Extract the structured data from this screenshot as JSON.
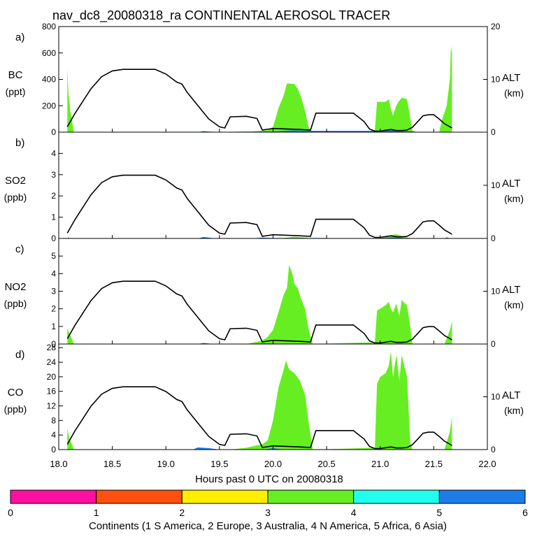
{
  "title": "nav_dc8_20080318_ra CONTINENTAL AEROSOL TRACER",
  "xlabel": "Hours past 0 UTC on 20080318",
  "x_ticks": [
    "18.0",
    "18.5",
    "19.0",
    "19.5",
    "20.0",
    "20.5",
    "21.0",
    "21.5",
    "22.0"
  ],
  "colorbar": {
    "label": "Continents (1 S America, 2 Europe, 3 Australia, 4 N America, 5 Africa, 6 Asia)",
    "ticks": [
      "0",
      "1",
      "2",
      "3",
      "4",
      "5",
      "6"
    ],
    "colors": [
      "#ff10a0",
      "#ff5010",
      "#ffee00",
      "#66ee22",
      "#22ffee",
      "#1e7ce8"
    ]
  },
  "colors": {
    "green": "#66ee22",
    "blue": "#1e7ce8"
  },
  "chart_data": [
    {
      "type": "area",
      "panel": "a)",
      "ylabel": "BC",
      "unit": "(ppt)",
      "ylim": [
        0,
        800
      ],
      "yticks": [
        "0",
        "200",
        "400",
        "600",
        "800"
      ],
      "right_axis": {
        "label": "ALT",
        "unit": "(km)",
        "ylim": [
          0,
          20
        ],
        "ticks": [
          "0",
          "10",
          "20"
        ]
      },
      "series_green": [
        [
          18.08,
          480
        ],
        [
          18.09,
          300
        ],
        [
          18.11,
          150
        ],
        [
          18.13,
          60
        ],
        [
          18.14,
          0
        ],
        [
          19.3,
          0
        ],
        [
          19.8,
          5
        ],
        [
          19.95,
          15
        ],
        [
          20.0,
          40
        ],
        [
          20.05,
          180
        ],
        [
          20.1,
          280
        ],
        [
          20.13,
          370
        ],
        [
          20.2,
          365
        ],
        [
          20.23,
          330
        ],
        [
          20.26,
          270
        ],
        [
          20.3,
          160
        ],
        [
          20.33,
          40
        ],
        [
          20.37,
          0
        ],
        [
          20.8,
          0
        ],
        [
          20.95,
          15
        ],
        [
          20.97,
          230
        ],
        [
          21.05,
          230
        ],
        [
          21.08,
          250
        ],
        [
          21.1,
          175
        ],
        [
          21.12,
          125
        ],
        [
          21.15,
          200
        ],
        [
          21.17,
          230
        ],
        [
          21.2,
          260
        ],
        [
          21.25,
          250
        ],
        [
          21.3,
          15
        ],
        [
          21.33,
          0
        ],
        [
          21.55,
          0
        ],
        [
          21.58,
          100
        ],
        [
          21.6,
          150
        ],
        [
          21.62,
          200
        ],
        [
          21.65,
          400
        ],
        [
          21.66,
          650
        ],
        [
          21.67,
          600
        ]
      ],
      "series_blue": [
        [
          19.3,
          0
        ],
        [
          19.35,
          8
        ],
        [
          19.4,
          5
        ],
        [
          19.5,
          0
        ],
        [
          19.7,
          3
        ],
        [
          20.0,
          5
        ],
        [
          20.1,
          10
        ],
        [
          20.2,
          15
        ],
        [
          20.35,
          10
        ],
        [
          21.0,
          10
        ],
        [
          21.05,
          20
        ],
        [
          21.1,
          15
        ],
        [
          21.2,
          10
        ],
        [
          21.4,
          0
        ]
      ],
      "altitude": [
        [
          18.08,
          1
        ],
        [
          18.15,
          3.5
        ],
        [
          18.3,
          8.2
        ],
        [
          18.4,
          10.5
        ],
        [
          18.5,
          11.6
        ],
        [
          18.6,
          11.9
        ],
        [
          18.9,
          11.9
        ],
        [
          19.0,
          11
        ],
        [
          19.1,
          9.5
        ],
        [
          19.15,
          9.1
        ],
        [
          19.2,
          7.5
        ],
        [
          19.3,
          5
        ],
        [
          19.4,
          2.5
        ],
        [
          19.5,
          1
        ],
        [
          19.55,
          0.8
        ],
        [
          19.6,
          2.9
        ],
        [
          19.75,
          3
        ],
        [
          19.85,
          2.6
        ],
        [
          19.9,
          0.4
        ],
        [
          20.0,
          0.7
        ],
        [
          20.25,
          0.5
        ],
        [
          20.35,
          0.4
        ],
        [
          20.4,
          3.6
        ],
        [
          20.75,
          3.6
        ],
        [
          20.85,
          2
        ],
        [
          20.9,
          0.6
        ],
        [
          20.95,
          0.2
        ],
        [
          21.0,
          0.2
        ],
        [
          21.1,
          0.5
        ],
        [
          21.15,
          0.3
        ],
        [
          21.2,
          0.3
        ],
        [
          21.25,
          0.4
        ],
        [
          21.3,
          0.9
        ],
        [
          21.35,
          2
        ],
        [
          21.4,
          3.1
        ],
        [
          21.45,
          3.3
        ],
        [
          21.5,
          3.3
        ],
        [
          21.55,
          2.5
        ],
        [
          21.6,
          1.6
        ],
        [
          21.67,
          0.8
        ]
      ]
    },
    {
      "type": "area",
      "panel": "b)",
      "ylabel": "SO2",
      "unit": "(ppb)",
      "ylim": [
        0,
        5
      ],
      "yticks": [
        "0",
        "1",
        "2",
        "3",
        "4"
      ],
      "right_axis": {
        "label": "ALT",
        "unit": "(km)",
        "ylim": [
          0,
          20
        ],
        "ticks": [
          "0",
          "10"
        ]
      },
      "series_green": [
        [
          20.05,
          0
        ],
        [
          20.15,
          0.05
        ],
        [
          20.2,
          0.08
        ],
        [
          20.3,
          0.04
        ],
        [
          20.35,
          0
        ],
        [
          21.0,
          0
        ],
        [
          21.05,
          0.1
        ],
        [
          21.15,
          0.2
        ],
        [
          21.25,
          0.05
        ],
        [
          21.3,
          0
        ]
      ],
      "series_blue": [
        [
          18.08,
          0
        ],
        [
          18.09,
          0.06
        ],
        [
          18.1,
          0
        ],
        [
          19.3,
          0
        ],
        [
          19.35,
          0.07
        ],
        [
          19.4,
          0.04
        ],
        [
          19.45,
          0
        ],
        [
          19.8,
          0
        ],
        [
          19.9,
          0.04
        ],
        [
          20.0,
          0.02
        ],
        [
          20.5,
          0.02
        ],
        [
          20.6,
          0
        ],
        [
          21.0,
          0
        ],
        [
          21.1,
          0.05
        ],
        [
          21.2,
          0.03
        ],
        [
          21.25,
          0
        ],
        [
          21.6,
          0
        ],
        [
          21.62,
          0.05
        ],
        [
          21.65,
          0
        ]
      ],
      "altitude": [
        [
          18.08,
          1
        ],
        [
          18.15,
          3.5
        ],
        [
          18.3,
          8.2
        ],
        [
          18.4,
          10.5
        ],
        [
          18.5,
          11.6
        ],
        [
          18.6,
          11.9
        ],
        [
          18.9,
          11.9
        ],
        [
          19.0,
          11
        ],
        [
          19.1,
          9.5
        ],
        [
          19.15,
          9.1
        ],
        [
          19.2,
          7.5
        ],
        [
          19.3,
          5
        ],
        [
          19.4,
          2.5
        ],
        [
          19.5,
          1
        ],
        [
          19.55,
          0.8
        ],
        [
          19.6,
          2.9
        ],
        [
          19.75,
          3
        ],
        [
          19.85,
          2.6
        ],
        [
          19.9,
          0.4
        ],
        [
          20.0,
          0.7
        ],
        [
          20.25,
          0.5
        ],
        [
          20.35,
          0.4
        ],
        [
          20.4,
          3.6
        ],
        [
          20.75,
          3.6
        ],
        [
          20.85,
          2
        ],
        [
          20.9,
          0.6
        ],
        [
          20.95,
          0.2
        ],
        [
          21.0,
          0.2
        ],
        [
          21.1,
          0.5
        ],
        [
          21.15,
          0.3
        ],
        [
          21.2,
          0.3
        ],
        [
          21.25,
          0.4
        ],
        [
          21.3,
          0.9
        ],
        [
          21.35,
          2
        ],
        [
          21.4,
          3.1
        ],
        [
          21.45,
          3.3
        ],
        [
          21.5,
          3.3
        ],
        [
          21.55,
          2.5
        ],
        [
          21.6,
          1.6
        ],
        [
          21.67,
          0.8
        ]
      ]
    },
    {
      "type": "area",
      "panel": "c)",
      "ylabel": "NO2",
      "unit": "(ppb)",
      "ylim": [
        0,
        6
      ],
      "yticks": [
        "0",
        "1",
        "2",
        "3",
        "4",
        "5"
      ],
      "right_axis": {
        "label": "ALT",
        "unit": "(km)",
        "ylim": [
          0,
          20
        ],
        "ticks": [
          "0",
          "10"
        ]
      },
      "series_green": [
        [
          18.08,
          0.9
        ],
        [
          18.1,
          0.6
        ],
        [
          18.13,
          0.2
        ],
        [
          18.14,
          0
        ],
        [
          19.75,
          0
        ],
        [
          19.9,
          0.2
        ],
        [
          19.95,
          0.4
        ],
        [
          20.0,
          0.8
        ],
        [
          20.05,
          1.8
        ],
        [
          20.1,
          2.8
        ],
        [
          20.13,
          3.2
        ],
        [
          20.15,
          4.5
        ],
        [
          20.18,
          4.0
        ],
        [
          20.2,
          3.4
        ],
        [
          20.23,
          3.2
        ],
        [
          20.26,
          2.6
        ],
        [
          20.3,
          2.0
        ],
        [
          20.33,
          0.9
        ],
        [
          20.37,
          0
        ],
        [
          20.95,
          0.1
        ],
        [
          20.97,
          1.9
        ],
        [
          21.05,
          2.2
        ],
        [
          21.08,
          2.4
        ],
        [
          21.1,
          2.0
        ],
        [
          21.12,
          1.8
        ],
        [
          21.15,
          2.3
        ],
        [
          21.18,
          1.6
        ],
        [
          21.2,
          2.5
        ],
        [
          21.25,
          2.2
        ],
        [
          21.28,
          1.0
        ],
        [
          21.3,
          0
        ],
        [
          21.6,
          0
        ],
        [
          21.62,
          0.3
        ],
        [
          21.65,
          0.8
        ],
        [
          21.67,
          1.3
        ]
      ],
      "series_blue": [
        [
          19.3,
          0
        ],
        [
          19.35,
          0.06
        ],
        [
          19.4,
          0.03
        ],
        [
          19.45,
          0
        ],
        [
          19.8,
          0
        ],
        [
          19.9,
          0.04
        ],
        [
          20.0,
          0.03
        ],
        [
          20.1,
          0
        ]
      ],
      "altitude": [
        [
          18.08,
          1
        ],
        [
          18.15,
          3.5
        ],
        [
          18.3,
          8.2
        ],
        [
          18.4,
          10.5
        ],
        [
          18.5,
          11.6
        ],
        [
          18.6,
          11.9
        ],
        [
          18.9,
          11.9
        ],
        [
          19.0,
          11
        ],
        [
          19.1,
          9.5
        ],
        [
          19.15,
          9.1
        ],
        [
          19.2,
          7.5
        ],
        [
          19.3,
          5
        ],
        [
          19.4,
          2.5
        ],
        [
          19.5,
          1
        ],
        [
          19.55,
          0.8
        ],
        [
          19.6,
          2.9
        ],
        [
          19.75,
          3
        ],
        [
          19.85,
          2.6
        ],
        [
          19.9,
          0.4
        ],
        [
          20.0,
          0.7
        ],
        [
          20.25,
          0.5
        ],
        [
          20.35,
          0.4
        ],
        [
          20.4,
          3.6
        ],
        [
          20.75,
          3.6
        ],
        [
          20.85,
          2
        ],
        [
          20.9,
          0.6
        ],
        [
          20.95,
          0.2
        ],
        [
          21.0,
          0.2
        ],
        [
          21.1,
          0.5
        ],
        [
          21.15,
          0.3
        ],
        [
          21.2,
          0.3
        ],
        [
          21.25,
          0.4
        ],
        [
          21.3,
          0.9
        ],
        [
          21.35,
          2
        ],
        [
          21.4,
          3.1
        ],
        [
          21.45,
          3.3
        ],
        [
          21.5,
          3.3
        ],
        [
          21.55,
          2.5
        ],
        [
          21.6,
          1.6
        ],
        [
          21.67,
          0.8
        ]
      ]
    },
    {
      "type": "area",
      "panel": "d)",
      "ylabel": "CO",
      "unit": "(ppb)",
      "ylim": [
        0,
        29
      ],
      "yticks": [
        "0",
        "4",
        "8",
        "12",
        "16",
        "20",
        "24",
        "28"
      ],
      "right_axis": {
        "label": "ALT",
        "unit": "(km)",
        "ylim": [
          0,
          20
        ],
        "ticks": [
          "0",
          "10"
        ]
      },
      "series_green": [
        [
          18.08,
          5.8
        ],
        [
          18.1,
          3
        ],
        [
          18.13,
          1
        ],
        [
          18.14,
          0
        ],
        [
          19.6,
          0
        ],
        [
          19.75,
          0.5
        ],
        [
          19.9,
          1.5
        ],
        [
          19.95,
          2.5
        ],
        [
          20.0,
          8
        ],
        [
          20.05,
          17
        ],
        [
          20.1,
          22
        ],
        [
          20.12,
          24.5
        ],
        [
          20.15,
          22
        ],
        [
          20.2,
          21
        ],
        [
          20.25,
          19
        ],
        [
          20.3,
          15
        ],
        [
          20.33,
          8
        ],
        [
          20.37,
          0
        ],
        [
          20.95,
          0.5
        ],
        [
          20.97,
          18
        ],
        [
          21.0,
          20
        ],
        [
          21.05,
          21
        ],
        [
          21.08,
          23
        ],
        [
          21.1,
          27
        ],
        [
          21.12,
          20
        ],
        [
          21.15,
          26
        ],
        [
          21.18,
          19
        ],
        [
          21.2,
          26
        ],
        [
          21.25,
          20
        ],
        [
          21.28,
          2
        ],
        [
          21.3,
          0
        ],
        [
          21.6,
          0
        ],
        [
          21.62,
          2
        ],
        [
          21.65,
          5
        ],
        [
          21.67,
          9
        ]
      ],
      "series_blue": [
        [
          19.25,
          0
        ],
        [
          19.3,
          0.6
        ],
        [
          19.4,
          0.4
        ],
        [
          19.5,
          0
        ],
        [
          19.9,
          0
        ],
        [
          20.0,
          0.4
        ],
        [
          20.1,
          0
        ]
      ],
      "altitude": [
        [
          18.08,
          1
        ],
        [
          18.15,
          3.5
        ],
        [
          18.3,
          8.2
        ],
        [
          18.4,
          10.5
        ],
        [
          18.5,
          11.6
        ],
        [
          18.6,
          11.9
        ],
        [
          18.9,
          11.9
        ],
        [
          19.0,
          11
        ],
        [
          19.1,
          9.5
        ],
        [
          19.15,
          9.1
        ],
        [
          19.2,
          7.5
        ],
        [
          19.3,
          5
        ],
        [
          19.4,
          2.5
        ],
        [
          19.5,
          1
        ],
        [
          19.55,
          0.8
        ],
        [
          19.6,
          2.9
        ],
        [
          19.75,
          3
        ],
        [
          19.85,
          2.6
        ],
        [
          19.9,
          0.4
        ],
        [
          20.0,
          0.7
        ],
        [
          20.25,
          0.5
        ],
        [
          20.35,
          0.4
        ],
        [
          20.4,
          3.6
        ],
        [
          20.75,
          3.6
        ],
        [
          20.85,
          2
        ],
        [
          20.9,
          0.6
        ],
        [
          20.95,
          0.2
        ],
        [
          21.0,
          0.2
        ],
        [
          21.1,
          0.5
        ],
        [
          21.15,
          0.3
        ],
        [
          21.2,
          0.3
        ],
        [
          21.25,
          0.4
        ],
        [
          21.3,
          0.9
        ],
        [
          21.35,
          2
        ],
        [
          21.4,
          3.1
        ],
        [
          21.45,
          3.3
        ],
        [
          21.5,
          3.3
        ],
        [
          21.55,
          2.5
        ],
        [
          21.6,
          1.6
        ],
        [
          21.67,
          0.8
        ]
      ]
    }
  ]
}
